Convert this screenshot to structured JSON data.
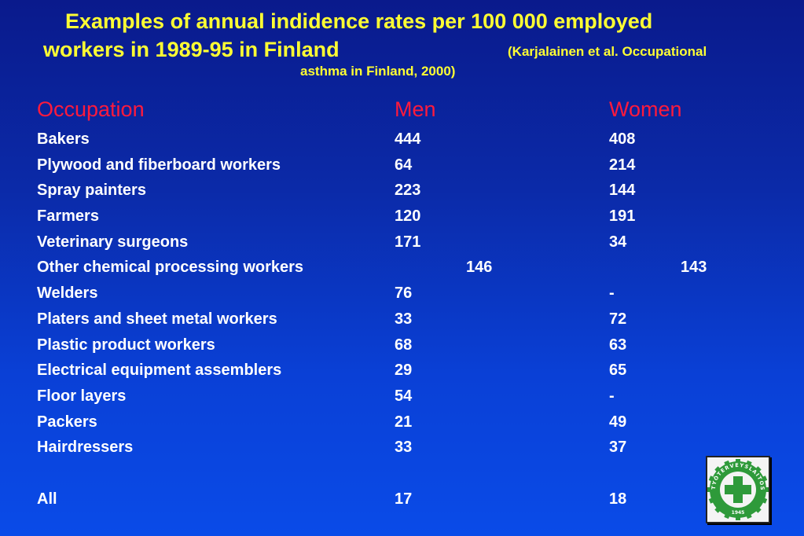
{
  "title": {
    "line1": "Examples of annual indidence rates per 100 000 employed",
    "line2": "workers in 1989-95 in Finland",
    "citation_line1": "(Karjalainen et al. Occupational",
    "citation_line2": "asthma in Finland, 2000)"
  },
  "table": {
    "headers": {
      "occupation": "Occupation",
      "men": "Men",
      "women": "Women"
    },
    "rows": [
      {
        "occupation": "Bakers",
        "men": "444",
        "women": "408"
      },
      {
        "occupation": "Plywood and fiberboard workers",
        "men": "64",
        "women": "214"
      },
      {
        "occupation": "Spray painters",
        "men": "223",
        "women": "144"
      },
      {
        "occupation": "Farmers",
        "men": "120",
        "women": "191"
      },
      {
        "occupation": "Veterinary surgeons",
        "men": "171",
        "women": "34"
      },
      {
        "occupation": "Other chemical processing workers",
        "men": "146",
        "women": "143"
      },
      {
        "occupation": "Welders",
        "men": "76",
        "women": "-"
      },
      {
        "occupation": "Platers and sheet metal workers",
        "men": "33",
        "women": "72"
      },
      {
        "occupation": "Plastic product workers",
        "men": "68",
        "women": "63"
      },
      {
        "occupation": "Electrical equipment assemblers",
        "men": "29",
        "women": "65"
      },
      {
        "occupation": "Floor layers",
        "men": "54",
        "women": "-"
      },
      {
        "occupation": "Packers",
        "men": "21",
        "women": "49"
      },
      {
        "occupation": "Hairdressers",
        "men": "33",
        "women": "37"
      }
    ],
    "total": {
      "occupation": "All",
      "men": "17",
      "women": "18"
    }
  },
  "logo": {
    "ring_text": "TYÖTERVEYSLAITOS",
    "year": "1945",
    "colors": {
      "ring": "#2e9a3a",
      "cross": "#2e9a3a",
      "background": "#f4f4f4"
    }
  }
}
